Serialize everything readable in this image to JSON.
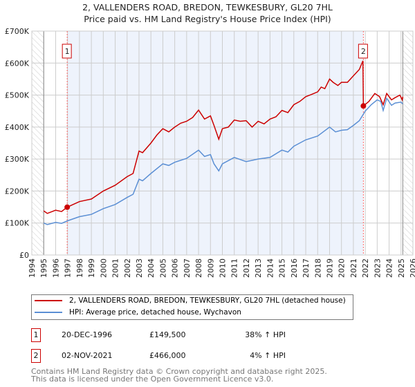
{
  "chart_data": {
    "type": "line",
    "title": "2, VALLENDERS ROAD, BREDON, TEWKESBURY, GL20 7HL",
    "subtitle": "Price paid vs. HM Land Registry's House Price Index (HPI)",
    "xlim": [
      1994,
      2026
    ],
    "ylim": [
      0,
      700000
    ],
    "x_ticks": [
      "1994",
      "1995",
      "1996",
      "1997",
      "1998",
      "1999",
      "2000",
      "2001",
      "2002",
      "2003",
      "2004",
      "2005",
      "2006",
      "2007",
      "2008",
      "2009",
      "2010",
      "2011",
      "2012",
      "2013",
      "2014",
      "2015",
      "2016",
      "2017",
      "2018",
      "2019",
      "2020",
      "2021",
      "2022",
      "2023",
      "2024",
      "2025",
      "2026"
    ],
    "y_ticks": [
      {
        "v": 0,
        "label": "£0"
      },
      {
        "v": 100000,
        "label": "£100K"
      },
      {
        "v": 200000,
        "label": "£200K"
      },
      {
        "v": 300000,
        "label": "£300K"
      },
      {
        "v": 400000,
        "label": "£400K"
      },
      {
        "v": 500000,
        "label": "£500K"
      },
      {
        "v": 600000,
        "label": "£600K"
      },
      {
        "v": 700000,
        "label": "£700K"
      }
    ],
    "grid": true,
    "data_range": [
      1995.0,
      2025.15
    ],
    "series": [
      {
        "name": "2, VALLENDERS ROAD, BREDON, TEWKESBURY, GL20 7HL (detached house)",
        "color": "#cc0000",
        "x": [
          1995.0,
          1995.3,
          1996.0,
          1996.5,
          1996.97,
          1998,
          1999,
          2000,
          2001,
          2002,
          2002.5,
          2003,
          2003.3,
          2004,
          2004.5,
          2005,
          2005.5,
          2006,
          2006.5,
          2007,
          2007.5,
          2008,
          2008.5,
          2009,
          2009.3,
          2009.7,
          2010,
          2010.5,
          2011,
          2011.5,
          2012,
          2012.5,
          2013,
          2013.5,
          2014,
          2014.5,
          2015,
          2015.5,
          2016,
          2016.5,
          2017,
          2017.5,
          2018,
          2018.3,
          2018.6,
          2019,
          2019.3,
          2019.7,
          2020,
          2020.5,
          2021,
          2021.5,
          2021.8,
          2021.84,
          2022.3,
          2022.8,
          2023.2,
          2023.5,
          2023.8,
          2024.2,
          2024.5,
          2024.9,
          2025.1,
          2025.15
        ],
        "y": [
          138000,
          130000,
          140000,
          136000,
          149500,
          167000,
          175000,
          200000,
          218000,
          245000,
          255000,
          325000,
          320000,
          350000,
          375000,
          395000,
          385000,
          400000,
          412000,
          418000,
          430000,
          453000,
          425000,
          435000,
          405000,
          362000,
          395000,
          400000,
          422000,
          418000,
          420000,
          400000,
          418000,
          410000,
          425000,
          432000,
          452000,
          445000,
          470000,
          480000,
          495000,
          502000,
          510000,
          525000,
          520000,
          550000,
          540000,
          530000,
          540000,
          540000,
          560000,
          580000,
          607000,
          466000,
          480000,
          505000,
          495000,
          470000,
          505000,
          485000,
          492000,
          500000,
          485000,
          495000
        ]
      },
      {
        "name": "HPI: Average price, detached house, Wychavon",
        "color": "#5b8fd4",
        "x": [
          1995.0,
          1995.3,
          1996.0,
          1996.5,
          1997,
          1998,
          1999,
          2000,
          2001,
          2002,
          2002.5,
          2003,
          2003.3,
          2004,
          2005,
          2005.5,
          2006,
          2007,
          2008,
          2008.5,
          2009,
          2009.3,
          2009.7,
          2010,
          2011,
          2012,
          2013,
          2014,
          2015,
          2015.5,
          2016,
          2017,
          2018,
          2019,
          2019.5,
          2020,
          2020.5,
          2021,
          2021.5,
          2022,
          2022.5,
          2023,
          2023.3,
          2023.5,
          2023.8,
          2024.2,
          2024.5,
          2025,
          2025.15
        ],
        "y": [
          100000,
          95000,
          102000,
          99000,
          107000,
          120000,
          127000,
          145000,
          158000,
          180000,
          190000,
          237000,
          232000,
          255000,
          285000,
          280000,
          290000,
          302000,
          328000,
          308000,
          314000,
          285000,
          263000,
          285000,
          305000,
          292000,
          300000,
          305000,
          328000,
          322000,
          340000,
          360000,
          372000,
          400000,
          385000,
          390000,
          392000,
          405000,
          420000,
          450000,
          470000,
          485000,
          480000,
          452000,
          490000,
          468000,
          475000,
          478000,
          472000
        ]
      }
    ],
    "annotations": [
      {
        "label": "1",
        "x": 1996.97,
        "y": 149500
      },
      {
        "label": "2",
        "x": 2021.84,
        "y": 466000
      }
    ]
  },
  "legend": {
    "items": [
      "2, VALLENDERS ROAD, BREDON, TEWKESBURY, GL20 7HL (detached house)",
      "HPI: Average price, detached house, Wychavon"
    ]
  },
  "transactions": [
    {
      "num": "1",
      "date": "20-DEC-1996",
      "price": "£149,500",
      "hpi": "38% ↑ HPI"
    },
    {
      "num": "2",
      "date": "02-NOV-2021",
      "price": "£466,000",
      "hpi": "4% ↑ HPI"
    }
  ],
  "footer": {
    "line1": "Contains HM Land Registry data © Crown copyright and database right 2025.",
    "line2": "This data is licensed under the Open Government Licence v3.0."
  }
}
